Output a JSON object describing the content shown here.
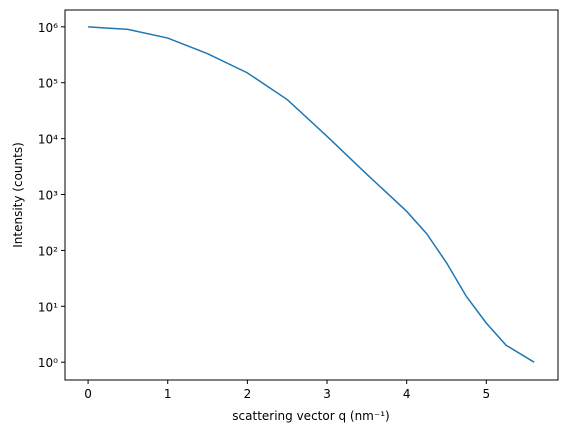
{
  "chart_data": {
    "type": "line",
    "x_label": "scattering vector q (nm⁻¹)",
    "y_label": "Intensity (counts)",
    "x": [
      0,
      0.5,
      1,
      1.5,
      2,
      2.5,
      3,
      3.5,
      4,
      4.25,
      4.5,
      4.75,
      5,
      5.25,
      5.6
    ],
    "series": [
      {
        "color": "#1f77b4",
        "values": [
          1000000,
          900000,
          630000,
          330000,
          150000,
          50000,
          11000,
          2300,
          500,
          200,
          60,
          15,
          5,
          2,
          1
        ]
      }
    ],
    "log_y": true,
    "xlim": [
      -0.29,
      5.9
    ],
    "xticks": [
      0,
      1,
      2,
      3,
      4,
      5
    ],
    "ylim": [
      0.48,
      2000000
    ],
    "yticks": [
      {
        "value": 1,
        "label": "10⁰"
      },
      {
        "value": 10,
        "label": "10¹"
      },
      {
        "value": 100,
        "label": "10²"
      },
      {
        "value": 1000,
        "label": "10³"
      },
      {
        "value": 10000,
        "label": "10⁴"
      },
      {
        "value": 100000,
        "label": "10⁵"
      },
      {
        "value": 1000000,
        "label": "10⁶"
      }
    ]
  }
}
